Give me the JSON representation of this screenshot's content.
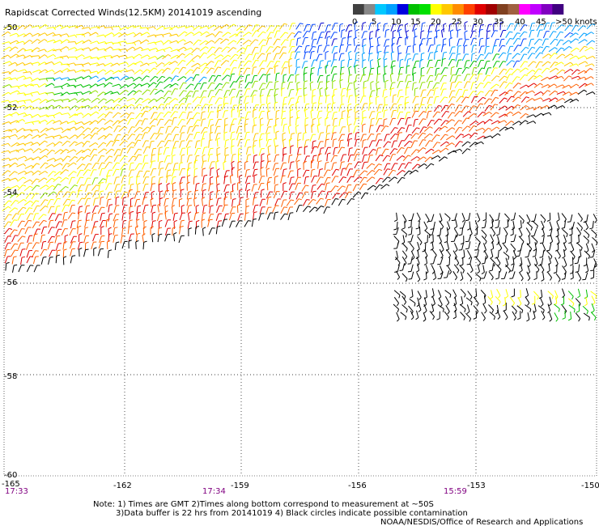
{
  "title": "Rapidscat Corrected Winds(12.5KM) 20141019 ascending",
  "colorbar": {
    "labels": [
      "0",
      "5",
      "10",
      "15",
      "20",
      "25",
      "30",
      "35",
      "40",
      "45",
      ">50 knots"
    ],
    "colors": [
      "#404040",
      "#888888",
      "#00c8ff",
      "#00a0ff",
      "#0000e0",
      "#00c000",
      "#00e000",
      "#ffff00",
      "#ffc800",
      "#ff8c00",
      "#ff4000",
      "#e00000",
      "#a00000",
      "#804020",
      "#a06040",
      "#ff00ff",
      "#c000ff",
      "#8000c0",
      "#400080"
    ]
  },
  "axes": {
    "lon_labels": [
      "-165",
      "-162",
      "-159",
      "-156",
      "-153",
      "-150"
    ],
    "lat_labels": [
      "-50",
      "-52",
      "-54",
      "-56",
      "-58",
      "-60"
    ],
    "lon_range": [
      -165,
      -150
    ],
    "lat_range": [
      -50,
      -60
    ]
  },
  "times": [
    "17:33",
    "17:34",
    "15:59"
  ],
  "notes": [
    "Note: 1) Times are GMT 2)Times along bottom correspond to measurement at ~50S",
    "3)Data buffer is 22 hrs from 20141019 4) Black circles indicate possible contamination",
    "NOAA/NESDIS/Office of Research and Applications"
  ],
  "icons": {
    "wind": "wind-barb-icon"
  }
}
